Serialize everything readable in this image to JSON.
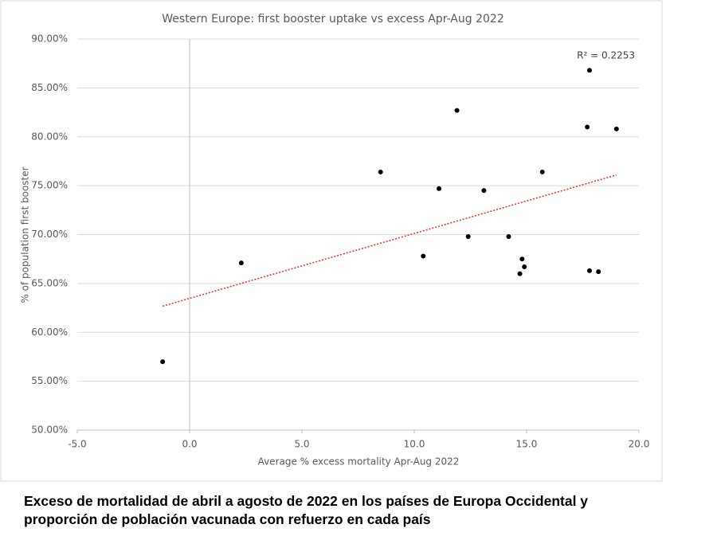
{
  "chart_data": {
    "type": "scatter",
    "title": "Western Europe: first booster uptake vs excess Apr-Aug 2022",
    "x_label": "Average % excess mortality Apr-Aug 2022",
    "y_label": "% of population first booster",
    "annotation": "R² = 0.2253",
    "x": [
      -1.2,
      2.3,
      8.5,
      10.4,
      11.1,
      11.9,
      12.4,
      13.1,
      14.2,
      14.8,
      14.9,
      14.7,
      15.7,
      17.8,
      17.7,
      17.8,
      18.2,
      19.0
    ],
    "values": [
      57.0,
      67.1,
      76.4,
      67.8,
      74.7,
      82.7,
      69.8,
      74.5,
      69.8,
      67.5,
      66.7,
      66.0,
      76.4,
      86.8,
      81.0,
      66.3,
      66.2,
      80.8
    ],
    "color": "#000000",
    "trendline": true,
    "trendline_color": "#e8352f",
    "xlim": [
      -5,
      20
    ],
    "xticks": [
      {
        "value": -5,
        "label": "-5.0"
      },
      {
        "value": 0,
        "label": "0.0"
      },
      {
        "value": 5,
        "label": "5.0"
      },
      {
        "value": 10,
        "label": "10.0"
      },
      {
        "value": 15,
        "label": "15.0"
      },
      {
        "value": 20,
        "label": "20.0"
      }
    ],
    "ylim": [
      50,
      90
    ],
    "yticks": [
      {
        "value": 50,
        "label": "50.00%"
      },
      {
        "value": 55,
        "label": "55.00%"
      },
      {
        "value": 60,
        "label": "60.00%"
      },
      {
        "value": 65,
        "label": "65.00%"
      },
      {
        "value": 70,
        "label": "70.00%"
      },
      {
        "value": 75,
        "label": "75.00%"
      },
      {
        "value": 80,
        "label": "80.00%"
      },
      {
        "value": 85,
        "label": "85.00%"
      },
      {
        "value": 90,
        "label": "90.00%"
      }
    ],
    "grid": true
  },
  "caption": {
    "lines": [
      "Exceso de mortalidad de abril a agosto de 2022 en los países de Europa Occidental y",
      "proporción de población vacunada con refuerzo en cada país"
    ]
  }
}
